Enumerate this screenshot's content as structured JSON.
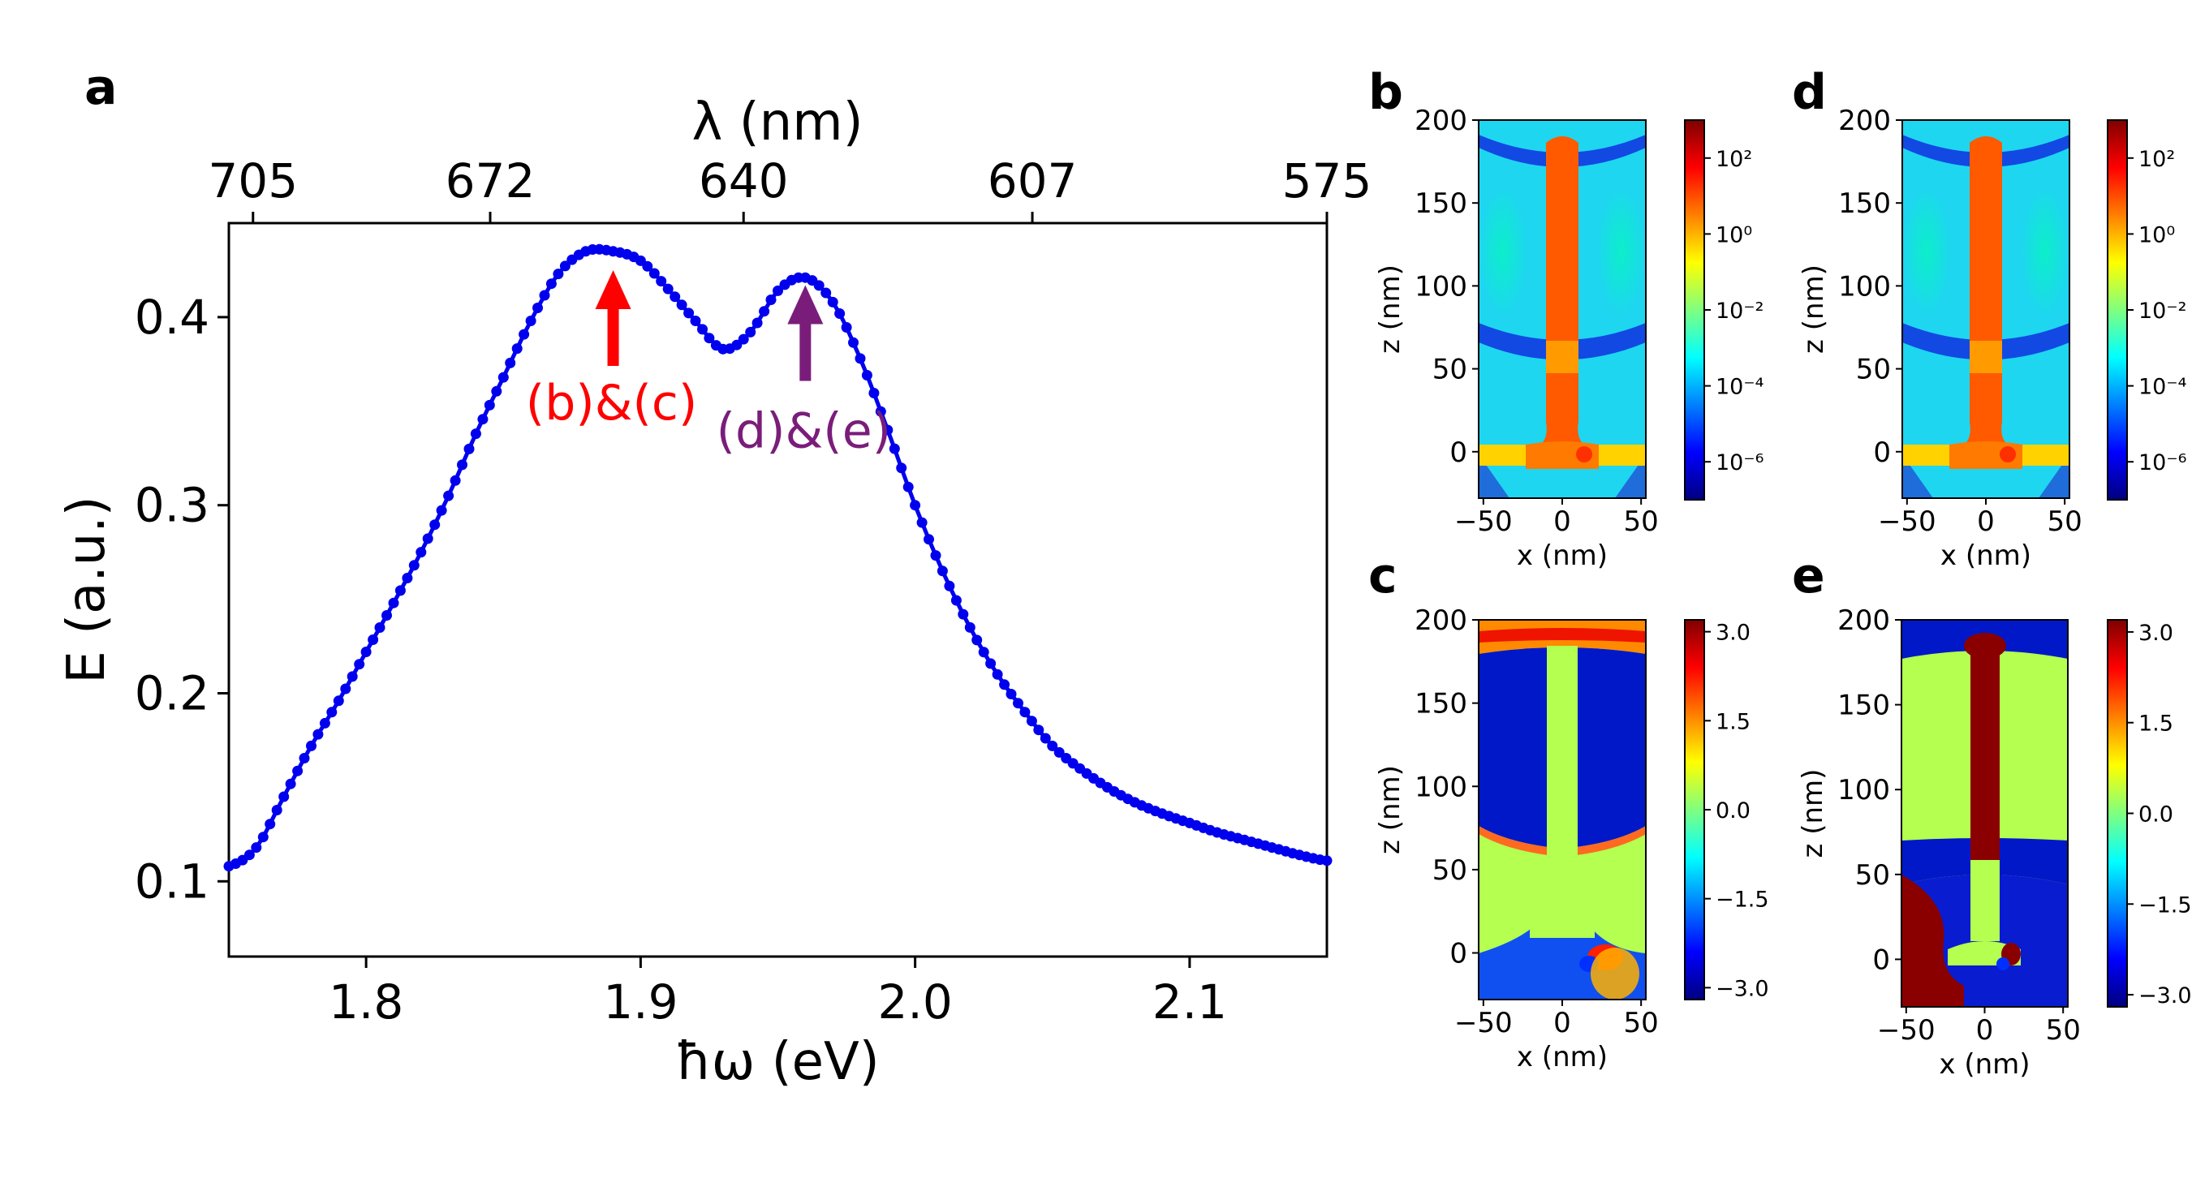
{
  "panels": {
    "a": "a",
    "b": "b",
    "c": "c",
    "d": "d",
    "e": "e"
  },
  "chart_data": [
    {
      "panel": "a",
      "type": "line",
      "title": "",
      "xlabel": "ħω (eV)",
      "ylabel": "E (a.u.)",
      "top_xlabel": "λ (nm)",
      "xlim": [
        1.75,
        2.15
      ],
      "ylim": [
        0.06,
        0.45
      ],
      "xticks": [
        "1.8",
        "1.9",
        "2.0",
        "2.1"
      ],
      "xtick_values": [
        1.8,
        1.9,
        2.0,
        2.1
      ],
      "yticks": [
        "0.1",
        "0.2",
        "0.3",
        "0.4"
      ],
      "ytick_values": [
        0.1,
        0.2,
        0.3,
        0.4
      ],
      "top_ticks": [
        "705",
        "672",
        "640",
        "607",
        "575"
      ],
      "top_tick_energies": [
        1.7588,
        1.8452,
        1.9375,
        2.0427,
        2.1565
      ],
      "series": [
        {
          "name": "spectrum",
          "color": "#0000ee",
          "x": [
            1.75,
            1.76,
            1.77,
            1.78,
            1.79,
            1.8,
            1.81,
            1.82,
            1.83,
            1.84,
            1.85,
            1.86,
            1.87,
            1.88,
            1.89,
            1.9,
            1.91,
            1.92,
            1.93,
            1.94,
            1.95,
            1.96,
            1.97,
            1.98,
            1.99,
            2.0,
            2.01,
            2.02,
            2.03,
            2.04,
            2.05,
            2.06,
            2.07,
            2.08,
            2.09,
            2.1,
            2.11,
            2.12,
            2.13,
            2.14,
            2.15
          ],
          "values": [
            0.108,
            0.118,
            0.145,
            0.172,
            0.196,
            0.222,
            0.248,
            0.275,
            0.305,
            0.338,
            0.368,
            0.398,
            0.423,
            0.435,
            0.435,
            0.43,
            0.415,
            0.398,
            0.383,
            0.392,
            0.414,
            0.421,
            0.408,
            0.378,
            0.34,
            0.3,
            0.265,
            0.235,
            0.21,
            0.19,
            0.172,
            0.16,
            0.15,
            0.142,
            0.136,
            0.131,
            0.126,
            0.122,
            0.118,
            0.114,
            0.111
          ]
        }
      ],
      "annotations": [
        {
          "text": "(b)&(c)",
          "x": 1.89,
          "y": 0.425,
          "color": "#ff0000"
        },
        {
          "text": "(d)&(e)",
          "x": 1.96,
          "y": 0.417,
          "color": "#7a1d7a"
        }
      ]
    },
    {
      "panel": "b",
      "type": "heatmap",
      "quantity": "field intensity (log scale)",
      "xlabel": "x (nm)",
      "ylabel": "z (nm)",
      "xlim": [
        -53,
        53
      ],
      "ylim": [
        -28,
        200
      ],
      "xticks": [
        "−50",
        "0",
        "50"
      ],
      "yticks": [
        "200",
        "150",
        "100",
        "50",
        "0"
      ],
      "colorbar": {
        "scale": "log",
        "range": [
          -7,
          3
        ],
        "ticks": [
          "10²",
          "10⁰",
          "10⁻²",
          "10⁻⁴",
          "10⁻⁶"
        ],
        "tick_values": [
          2,
          0,
          -2,
          -4,
          -6
        ]
      }
    },
    {
      "panel": "c",
      "type": "heatmap",
      "quantity": "phase",
      "xlabel": "x (nm)",
      "ylabel": "z (nm)",
      "xlim": [
        -53,
        53
      ],
      "ylim": [
        -28,
        200
      ],
      "xticks": [
        "−50",
        "0",
        "50"
      ],
      "yticks": [
        "200",
        "150",
        "100",
        "50",
        "0"
      ],
      "colorbar": {
        "scale": "linear",
        "range": [
          -3.2,
          3.2
        ],
        "ticks": [
          "3.0",
          "1.5",
          "0.0",
          "−1.5",
          "−3.0"
        ],
        "tick_values": [
          3.0,
          1.5,
          0.0,
          -1.5,
          -3.0
        ]
      }
    },
    {
      "panel": "d",
      "type": "heatmap",
      "quantity": "field intensity (log scale)",
      "xlabel": "x (nm)",
      "ylabel": "z (nm)",
      "xlim": [
        -53,
        53
      ],
      "ylim": [
        -28,
        200
      ],
      "xticks": [
        "−50",
        "0",
        "50"
      ],
      "yticks": [
        "200",
        "150",
        "100",
        "50",
        "0"
      ],
      "colorbar": {
        "scale": "log",
        "range": [
          -7,
          3
        ],
        "ticks": [
          "10²",
          "10⁰",
          "10⁻²",
          "10⁻⁴",
          "10⁻⁶"
        ],
        "tick_values": [
          2,
          0,
          -2,
          -4,
          -6
        ]
      }
    },
    {
      "panel": "e",
      "type": "heatmap",
      "quantity": "phase",
      "xlabel": "x (nm)",
      "ylabel": "z (nm)",
      "xlim": [
        -53,
        53
      ],
      "ylim": [
        -28,
        200
      ],
      "xticks": [
        "−50",
        "0",
        "50"
      ],
      "yticks": [
        "200",
        "150",
        "100",
        "50",
        "0"
      ],
      "colorbar": {
        "scale": "linear",
        "range": [
          -3.2,
          3.2
        ],
        "ticks": [
          "3.0",
          "1.5",
          "0.0",
          "−1.5",
          "−3.0"
        ],
        "tick_values": [
          3.0,
          1.5,
          0.0,
          -1.5,
          -3.0
        ]
      }
    }
  ]
}
